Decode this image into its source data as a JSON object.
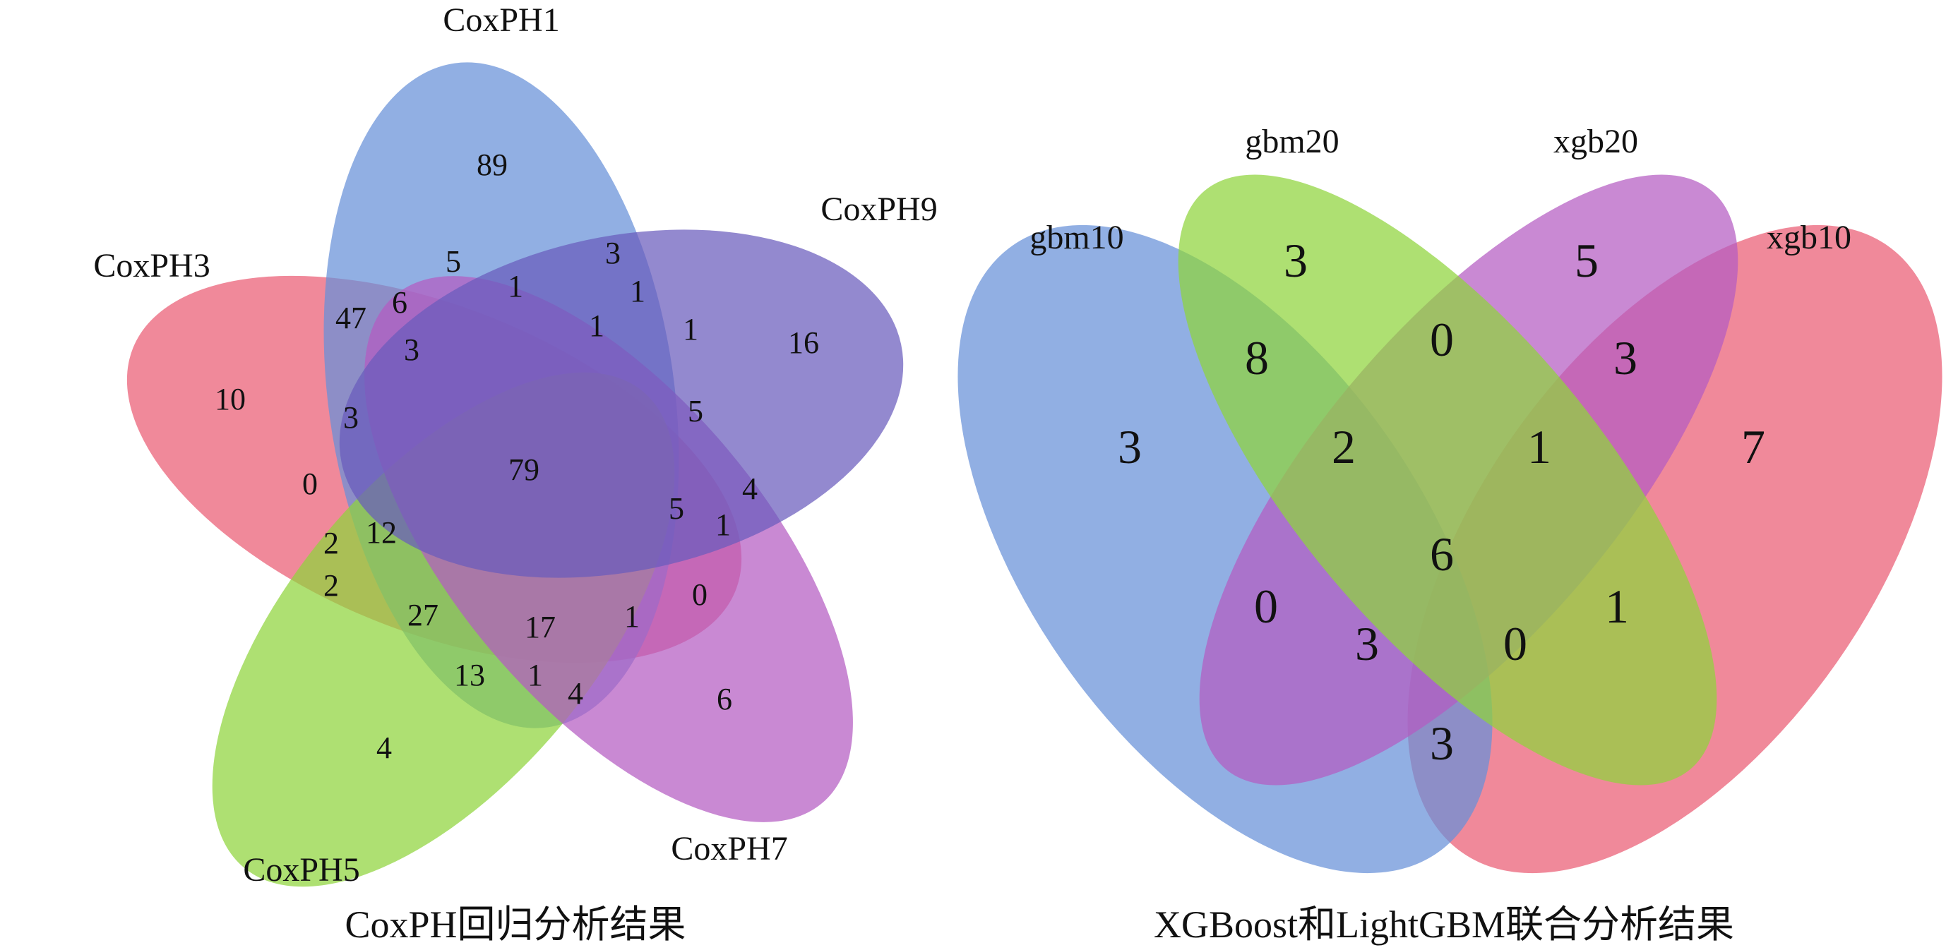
{
  "colors": {
    "red": "#ea5b73",
    "blue": "#6790d8",
    "purple": "#6a5bbd",
    "magenta": "#b45bc2",
    "green": "#8fd43c",
    "highlight": "#e8202e",
    "text": "#111111"
  },
  "panel_a": {
    "caption": "CoxPH回归分析结果",
    "sets": [
      {
        "name": "CoxPH1",
        "color": "blue"
      },
      {
        "name": "CoxPH3",
        "color": "red"
      },
      {
        "name": "CoxPH9",
        "color": "purple"
      },
      {
        "name": "CoxPH7",
        "color": "magenta"
      },
      {
        "name": "CoxPH5",
        "color": "green"
      }
    ],
    "counts": [
      {
        "value": "89"
      },
      {
        "value": "16"
      },
      {
        "value": "10"
      },
      {
        "value": "6"
      },
      {
        "value": "4"
      },
      {
        "value": "5"
      },
      {
        "value": "3"
      },
      {
        "value": "1"
      },
      {
        "value": "1"
      },
      {
        "value": "1"
      },
      {
        "value": "1"
      },
      {
        "value": "6"
      },
      {
        "value": "47"
      },
      {
        "value": "3"
      },
      {
        "value": "3"
      },
      {
        "value": "5"
      },
      {
        "value": "79",
        "highlight": true
      },
      {
        "value": "0"
      },
      {
        "value": "5"
      },
      {
        "value": "4"
      },
      {
        "value": "1"
      },
      {
        "value": "2"
      },
      {
        "value": "12"
      },
      {
        "value": "2"
      },
      {
        "value": "27"
      },
      {
        "value": "17"
      },
      {
        "value": "1"
      },
      {
        "value": "0"
      },
      {
        "value": "13"
      },
      {
        "value": "1"
      },
      {
        "value": "4"
      }
    ]
  },
  "panel_b": {
    "caption": "XGBoost和LightGBM联合分析结果",
    "sets": [
      {
        "name": "gbm10",
        "color": "blue"
      },
      {
        "name": "gbm20",
        "color": "green"
      },
      {
        "name": "xgb20",
        "color": "magenta"
      },
      {
        "name": "xgb10",
        "color": "red"
      }
    ],
    "counts": [
      {
        "value": "3"
      },
      {
        "value": "3"
      },
      {
        "value": "5"
      },
      {
        "value": "7"
      },
      {
        "value": "8",
        "highlight": true
      },
      {
        "value": "0"
      },
      {
        "value": "3",
        "highlight": true
      },
      {
        "value": "2",
        "highlight": true
      },
      {
        "value": "1",
        "highlight": true
      },
      {
        "value": "6",
        "highlight": true
      },
      {
        "value": "0"
      },
      {
        "value": "1"
      },
      {
        "value": "3",
        "highlight": true
      },
      {
        "value": "0",
        "highlight": true
      },
      {
        "value": "3"
      }
    ]
  }
}
